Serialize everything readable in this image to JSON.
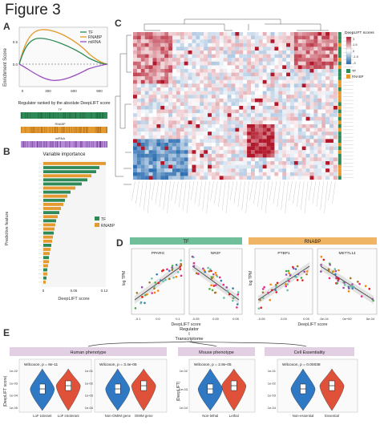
{
  "figure_title": "Figure 3",
  "panels": {
    "A": {
      "label": "A",
      "ylabel": "Enrichment Score",
      "xticks": [
        "0",
        "300",
        "600",
        "900"
      ],
      "yticks": [
        "0.5",
        "0.0"
      ],
      "legend": [
        "TF",
        "RNABP",
        "miRNA"
      ],
      "rank_title": "Regulator ranked by the absolute DeepLIFT score",
      "rug_labels": [
        "TF",
        "RNABP",
        "miRNA"
      ]
    },
    "B": {
      "label": "B",
      "title": "Variable importance",
      "ylabel": "Predictive feature",
      "xlabel": "DeepLIFT score",
      "xticks": [
        "0",
        "0.06",
        "0.12"
      ],
      "legend": [
        "TF",
        "RNABP"
      ]
    },
    "C": {
      "label": "C",
      "legend_title": "DeepLIFT scores",
      "legend_ticks": [
        "3",
        "1.5",
        "0",
        "-1.5",
        "-3"
      ],
      "group_legend": [
        "TF",
        "RNABP"
      ]
    },
    "D": {
      "label": "D",
      "group_left": "TF",
      "group_right": "RNABP",
      "ylabel": "log TPM",
      "subplots": [
        {
          "title": "PPARG",
          "xticks": [
            "-0.1",
            "0.0",
            "0.1"
          ]
        },
        {
          "title": "NR2F",
          "xticks": [
            "-0.05",
            "0.00",
            "0.05"
          ]
        },
        {
          "title": "PTBP1",
          "xticks": [
            "-0.05",
            "0.00",
            "0.05"
          ]
        },
        {
          "title": "METTL14",
          "xticks": [
            "-5e-04",
            "0e+00",
            "5e-04"
          ]
        }
      ],
      "xlabels": [
        "DeepLIFT score",
        "DeepLIFT score"
      ]
    },
    "E": {
      "label": "E",
      "tree_top": "Regulator",
      "tree_mid": "Transcriptome",
      "categories": [
        "Human phenotype",
        "Mouse phenotype",
        "Cell Essentiality"
      ],
      "ylabels": [
        "|DeepLIFT score|",
        "|DeepLIFT|"
      ],
      "plots": [
        {
          "stat": "Wilcoxon, p = 8e-11",
          "groups": [
            "LoF tolerant",
            "LoF intolerant"
          ],
          "yticks": [
            "1e-02",
            "1e-03",
            "1e-04",
            "1e-05"
          ]
        },
        {
          "stat": "Wilcoxon, p = 3.4e-05",
          "groups": [
            "Non-OMIM gene",
            "OMIM gene"
          ],
          "yticks": [
            "1e-01",
            "1e-02",
            "1e-03",
            "1e-04"
          ]
        },
        {
          "stat": "Wilcoxon, p = 2.8e-05",
          "groups": [
            "Non-lethal",
            "Lethal"
          ],
          "yticks": [
            "1e-02",
            "1e-03",
            "1e-04"
          ]
        },
        {
          "stat": "Wilcoxon, p = 0.00038",
          "groups": [
            "Non-essential",
            "Essential"
          ],
          "yticks": [
            "1e-01",
            "1e-02",
            "1e-03",
            "1e-04"
          ]
        }
      ]
    }
  },
  "colors": {
    "tf": "#2e8b57",
    "rnabp": "#e59a2f",
    "mirna": "#9a4fc0",
    "violin_blue": "#2f78c4",
    "violin_red": "#e0513a"
  }
}
